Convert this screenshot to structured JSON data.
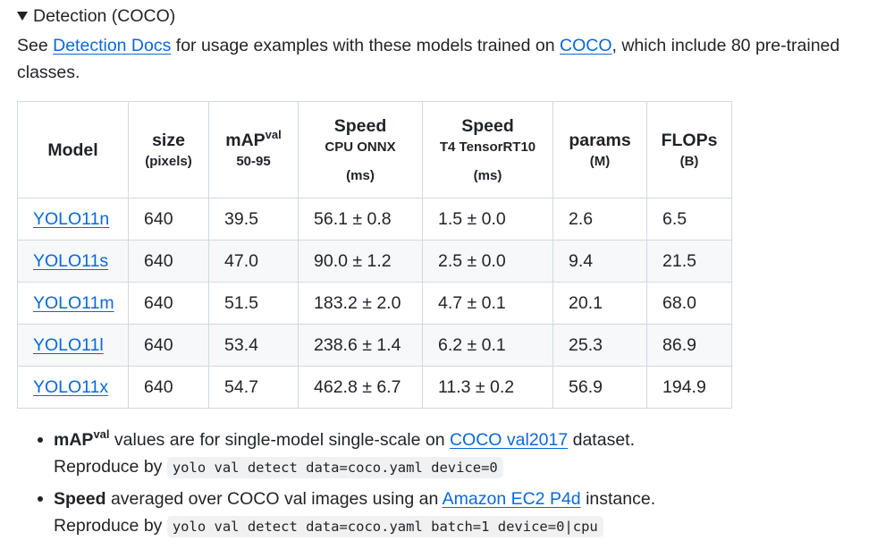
{
  "summary": {
    "title": "Detection (COCO)"
  },
  "intro": {
    "prefix": "See ",
    "docs_link": "Detection Docs",
    "middle": " for usage examples with these models trained on ",
    "coco_link": "COCO",
    "suffix": ", which include 80 pre-trained classes."
  },
  "table": {
    "headers": {
      "model": "Model",
      "size": "size",
      "size_sub": "(pixels)",
      "map": "mAP",
      "map_sup": "val",
      "map_sub": "50-95",
      "speed_cpu": "Speed",
      "speed_cpu_sub": "CPU ONNX",
      "speed_cpu_unit": "(ms)",
      "speed_gpu": "Speed",
      "speed_gpu_sub": "T4 TensorRT10",
      "speed_gpu_unit": "(ms)",
      "params": "params",
      "params_sub": "(M)",
      "flops": "FLOPs",
      "flops_sub": "(B)"
    },
    "rows": [
      {
        "model": "YOLO11n",
        "size": "640",
        "map": "39.5",
        "cpu": "56.1 ± 0.8",
        "gpu": "1.5 ± 0.0",
        "params": "2.6",
        "flops": "6.5"
      },
      {
        "model": "YOLO11s",
        "size": "640",
        "map": "47.0",
        "cpu": "90.0 ± 1.2",
        "gpu": "2.5 ± 0.0",
        "params": "9.4",
        "flops": "21.5"
      },
      {
        "model": "YOLO11m",
        "size": "640",
        "map": "51.5",
        "cpu": "183.2 ± 2.0",
        "gpu": "4.7 ± 0.1",
        "params": "20.1",
        "flops": "68.0"
      },
      {
        "model": "YOLO11l",
        "size": "640",
        "map": "53.4",
        "cpu": "238.6 ± 1.4",
        "gpu": "6.2 ± 0.1",
        "params": "25.3",
        "flops": "86.9"
      },
      {
        "model": "YOLO11x",
        "size": "640",
        "map": "54.7",
        "cpu": "462.8 ± 6.7",
        "gpu": "11.3 ± 0.2",
        "params": "56.9",
        "flops": "194.9"
      }
    ]
  },
  "notes": [
    {
      "bold": "mAP",
      "sup": "val",
      "text": " values are for single-model single-scale on ",
      "link": "COCO val2017",
      "text2": " dataset.",
      "repro": "Reproduce by ",
      "code": "yolo val detect data=coco.yaml device=0"
    },
    {
      "bold": "Speed",
      "text": " averaged over COCO val images using an ",
      "link": "Amazon EC2 P4d",
      "text2": " instance.",
      "repro": "Reproduce by ",
      "code": "yolo val detect data=coco.yaml batch=1 device=0|cpu"
    }
  ]
}
